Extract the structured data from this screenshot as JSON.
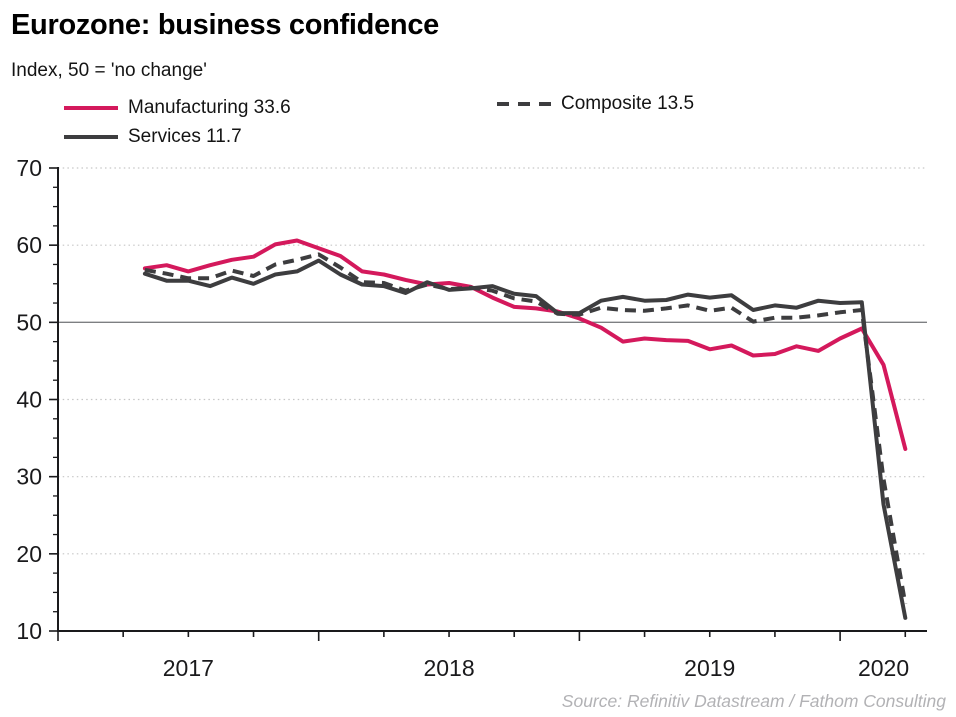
{
  "header": {
    "title": "Eurozone: business confidence",
    "subtitle": "Index, 50 = 'no change'"
  },
  "source": "Source: Refinitiv Datastream / Fathom Consulting",
  "colors": {
    "manufacturing": "#d4195c",
    "services": "#3d3d3f",
    "composite": "#3d3d3f",
    "grid": "#c6c6c6",
    "reference_line": "#7d7f82",
    "axis": "#1a1a1c",
    "source_text": "#b2b2b5"
  },
  "chart_data": {
    "type": "line",
    "title": "Eurozone: business confidence",
    "subtitle": "Index, 50 = 'no change'",
    "x_unit": "month",
    "x": [
      "2017-05",
      "2017-06",
      "2017-07",
      "2017-08",
      "2017-09",
      "2017-10",
      "2017-11",
      "2017-12",
      "2018-01",
      "2018-02",
      "2018-03",
      "2018-04",
      "2018-05",
      "2018-06",
      "2018-07",
      "2018-08",
      "2018-09",
      "2018-10",
      "2018-11",
      "2018-12",
      "2019-01",
      "2019-02",
      "2019-03",
      "2019-04",
      "2019-05",
      "2019-06",
      "2019-07",
      "2019-08",
      "2019-09",
      "2019-10",
      "2019-11",
      "2019-12",
      "2020-01",
      "2020-02",
      "2020-03",
      "2020-04"
    ],
    "x_domain": {
      "start": "2017-01",
      "end": "2020-05"
    },
    "x_tick_interval_months": 3,
    "x_year_labels": [
      "2017",
      "2018",
      "2019",
      "2020"
    ],
    "ylim": [
      10,
      70
    ],
    "y_major_ticks": [
      10,
      20,
      30,
      40,
      50,
      60,
      70
    ],
    "y_minor_step": 2.5,
    "reference_line_y": 50,
    "grid": "horizontal-dotted",
    "legend_position": "top-left",
    "series": [
      {
        "name": "Manufacturing",
        "label": "Manufacturing 33.6",
        "latest_value": 33.6,
        "color": "#d4195c",
        "line_style": "solid",
        "values": [
          57.0,
          57.4,
          56.6,
          57.4,
          58.1,
          58.5,
          60.1,
          60.6,
          59.6,
          58.6,
          56.6,
          56.2,
          55.5,
          54.9,
          55.1,
          54.6,
          53.2,
          52.0,
          51.8,
          51.4,
          50.5,
          49.3,
          47.5,
          47.9,
          47.7,
          47.6,
          46.5,
          47.0,
          45.7,
          45.9,
          46.9,
          46.3,
          47.9,
          49.2,
          44.5,
          33.6
        ]
      },
      {
        "name": "Services",
        "label": "Services 11.7",
        "latest_value": 11.7,
        "color": "#3d3d3f",
        "line_style": "solid",
        "values": [
          56.3,
          55.4,
          55.4,
          54.7,
          55.8,
          55.0,
          56.2,
          56.6,
          58.0,
          56.2,
          54.9,
          54.7,
          53.8,
          55.2,
          54.2,
          54.4,
          54.7,
          53.7,
          53.4,
          51.2,
          51.2,
          52.8,
          53.3,
          52.8,
          52.9,
          53.6,
          53.2,
          53.5,
          51.6,
          52.2,
          51.9,
          52.8,
          52.5,
          52.6,
          26.4,
          11.7
        ]
      },
      {
        "name": "Composite",
        "label": "Composite 13.5",
        "latest_value": 13.5,
        "color": "#3d3d3f",
        "line_style": "dashed",
        "values": [
          56.8,
          56.3,
          55.7,
          55.7,
          56.7,
          56.0,
          57.5,
          58.1,
          58.8,
          57.1,
          55.2,
          55.1,
          54.1,
          54.9,
          54.3,
          54.5,
          54.1,
          53.1,
          52.7,
          51.1,
          51.0,
          51.9,
          51.6,
          51.5,
          51.8,
          52.2,
          51.5,
          51.9,
          50.1,
          50.6,
          50.6,
          50.9,
          51.3,
          51.6,
          29.7,
          13.5
        ]
      }
    ],
    "source": "Source: Refinitiv Datastream / Fathom Consulting"
  }
}
